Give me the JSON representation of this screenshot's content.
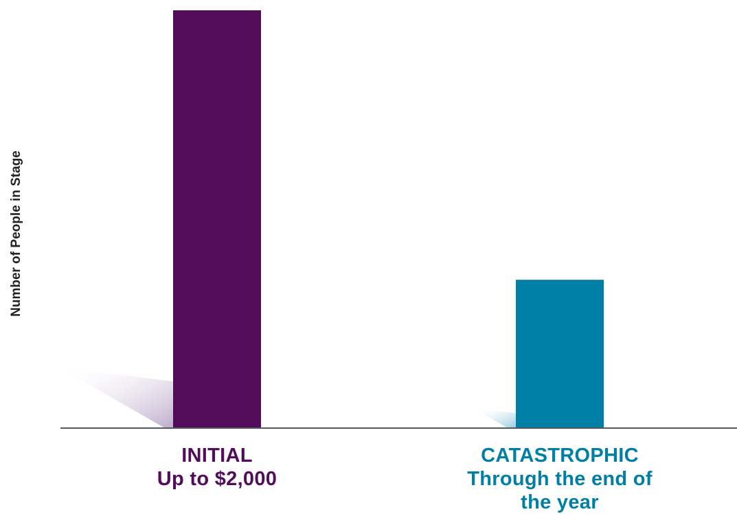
{
  "chart_data": {
    "type": "bar",
    "categories": [
      "INITIAL",
      "CATASTROPHIC"
    ],
    "category_sublabels": [
      "Up to $2,000",
      "Through the end of the year"
    ],
    "values": [
      100,
      35.5
    ],
    "colors": [
      "#520C5A",
      "#007FA6"
    ],
    "ylabel": "Number of People in Stage",
    "xlabel": "",
    "ylim": [
      0,
      100
    ],
    "grid": false,
    "legend": "none"
  },
  "colors": {
    "axis": "#555a60",
    "initial": "#520C5A",
    "catastrophic": "#007FA6"
  }
}
